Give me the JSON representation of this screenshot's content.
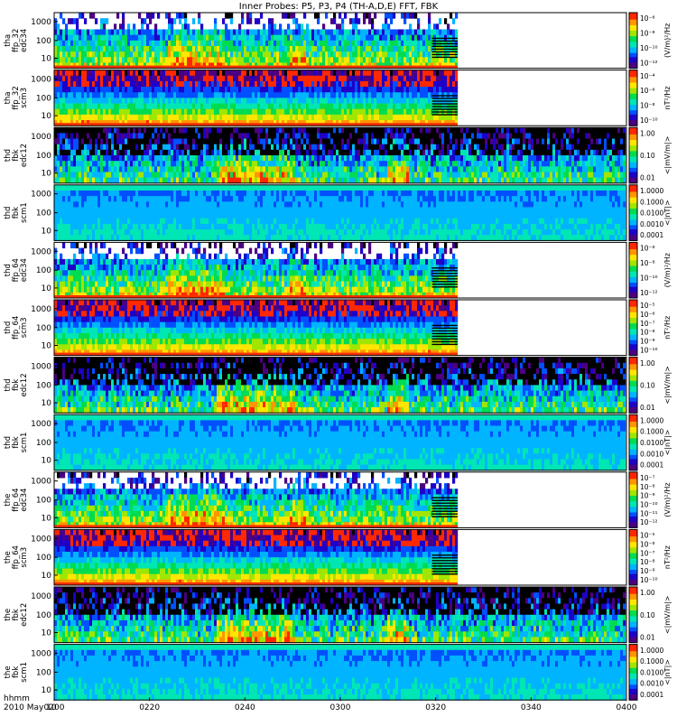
{
  "chart_data": {
    "type": "heatmap",
    "title": "Inner Probes: P5, P3, P4  (TH-A,D,E) FFT, FBK",
    "x_axis": {
      "label_line1": "hhmm",
      "label_line2": "2010 May 10",
      "ticks": [
        "0200",
        "0220",
        "0240",
        "0300",
        "0320",
        "0340",
        "0400"
      ]
    },
    "palette": [
      "#4b0082",
      "#1e00c8",
      "#0050ff",
      "#00b4ff",
      "#00e6b4",
      "#00dc50",
      "#a0e600",
      "#ffe600",
      "#ff9600",
      "#ff2800"
    ],
    "panels": [
      {
        "id": "tha-ffp32-edc34",
        "ylabel": [
          "tha",
          "ffp_32",
          "edc34"
        ],
        "yticks": [
          "1000",
          "100",
          "10"
        ],
        "cbar_type": "psd",
        "cbar_label": "(V/m)²/Hz",
        "cbar_ticks": [
          "10⁻⁶",
          "10⁻⁸",
          "10⁻¹⁰",
          "10⁻¹²"
        ],
        "data_end_fraction": 0.705,
        "stripe_end_fraction": 0.66,
        "activity": "bursty"
      },
      {
        "id": "tha-ffp32-scm3",
        "ylabel": [
          "tha",
          "ffp_32",
          "scm3"
        ],
        "yticks": [
          "1000",
          "100",
          "10"
        ],
        "cbar_type": "psd",
        "cbar_label": "nT²/Hz",
        "cbar_ticks": [
          "10⁻⁴",
          "10⁻⁶",
          "10⁻⁸",
          "10⁻¹⁰"
        ],
        "data_end_fraction": 0.705,
        "stripe_end_fraction": 0.66,
        "activity": "banded"
      },
      {
        "id": "thd-fbk-edc12",
        "ylabel": [
          "thd",
          "fbk",
          "edc12"
        ],
        "yticks": [
          "1000",
          "100",
          "10"
        ],
        "cbar_type": "amp",
        "cbar_label": "<|mV/m|>",
        "cbar_ticks": [
          "1.00",
          "0.10",
          "0.01"
        ],
        "data_end_fraction": 1.0,
        "activity": "fbk-e"
      },
      {
        "id": "thd-fbk-scm1",
        "ylabel": [
          "thd",
          "fbk",
          "scm1"
        ],
        "yticks": [
          "1000",
          "100",
          "10"
        ],
        "cbar_type": "amp",
        "cbar_label": "<|nT|>",
        "cbar_ticks": [
          "1.0000",
          "0.1000",
          "0.0100",
          "0.0010",
          "0.0001"
        ],
        "data_end_fraction": 1.0,
        "activity": "fbk-b"
      },
      {
        "id": "thd-ffp64-edc34",
        "ylabel": [
          "thd",
          "ffp_64",
          "edc34"
        ],
        "yticks": [
          "1000",
          "100",
          "10"
        ],
        "cbar_type": "psd",
        "cbar_label": "(V/m)²/Hz",
        "cbar_ticks": [
          "10⁻⁶",
          "10⁻⁸",
          "10⁻¹⁰",
          "10⁻¹²"
        ],
        "data_end_fraction": 0.705,
        "stripe_end_fraction": 0.66,
        "activity": "bursty"
      },
      {
        "id": "thd-ffp64-scm3",
        "ylabel": [
          "thd",
          "ffp_64",
          "scm3"
        ],
        "yticks": [
          "1000",
          "100",
          "10"
        ],
        "cbar_type": "psd",
        "cbar_label": "nT²/Hz",
        "cbar_ticks": [
          "10⁻⁵",
          "10⁻⁶",
          "10⁻⁷",
          "10⁻⁸",
          "10⁻⁹",
          "10⁻¹⁰"
        ],
        "data_end_fraction": 0.705,
        "stripe_end_fraction": 0.66,
        "activity": "banded"
      },
      {
        "id": "thd-fbk-edc12-b",
        "ylabel": [
          "thd",
          "fbk",
          "edc12"
        ],
        "yticks": [
          "1000",
          "100",
          "10"
        ],
        "cbar_type": "amp",
        "cbar_label": "<|mV/m|>",
        "cbar_ticks": [
          "1.00",
          "0.10",
          "0.01"
        ],
        "data_end_fraction": 1.0,
        "activity": "fbk-e"
      },
      {
        "id": "thd-fbk-scm1-b",
        "ylabel": [
          "thd",
          "fbk",
          "scm1"
        ],
        "yticks": [
          "1000",
          "100",
          "10"
        ],
        "cbar_type": "amp",
        "cbar_label": "<|nT|>",
        "cbar_ticks": [
          "1.0000",
          "0.1000",
          "0.0100",
          "0.0010",
          "0.0001"
        ],
        "data_end_fraction": 1.0,
        "activity": "fbk-b"
      },
      {
        "id": "the-ffp64-edc34",
        "ylabel": [
          "the",
          "ffp_64",
          "edc34"
        ],
        "yticks": [
          "1000",
          "100",
          "10"
        ],
        "cbar_type": "psd",
        "cbar_label": "(V/m)²/Hz",
        "cbar_ticks": [
          "10⁻⁷",
          "10⁻⁸",
          "10⁻⁹",
          "10⁻¹⁰",
          "10⁻¹¹",
          "10⁻¹²"
        ],
        "data_end_fraction": 0.705,
        "stripe_end_fraction": 0.66,
        "activity": "bursty"
      },
      {
        "id": "the-ffp64-scm3",
        "ylabel": [
          "the",
          "ffp_64",
          "scm3"
        ],
        "yticks": [
          "1000",
          "100",
          "10"
        ],
        "cbar_type": "psd",
        "cbar_label": "nT²/Hz",
        "cbar_ticks": [
          "10⁻⁵",
          "10⁻⁶",
          "10⁻⁷",
          "10⁻⁸",
          "10⁻⁹",
          "10⁻¹⁰"
        ],
        "data_end_fraction": 0.705,
        "stripe_end_fraction": 0.66,
        "activity": "banded"
      },
      {
        "id": "the-fbk-edc12",
        "ylabel": [
          "the",
          "fbk",
          "edc12"
        ],
        "yticks": [
          "1000",
          "100",
          "10"
        ],
        "cbar_type": "amp",
        "cbar_label": "<|mV/m|>",
        "cbar_ticks": [
          "1.00",
          "0.10",
          "0.01"
        ],
        "data_end_fraction": 1.0,
        "activity": "fbk-e"
      },
      {
        "id": "the-fbk-scm1",
        "ylabel": [
          "the",
          "fbk",
          "scm1"
        ],
        "yticks": [
          "1000",
          "100",
          "10"
        ],
        "cbar_type": "amp",
        "cbar_label": "<|nT|>",
        "cbar_ticks": [
          "1.0000",
          "0.1000",
          "0.0100",
          "0.0010",
          "0.0001"
        ],
        "data_end_fraction": 1.0,
        "activity": "fbk-b"
      }
    ]
  }
}
